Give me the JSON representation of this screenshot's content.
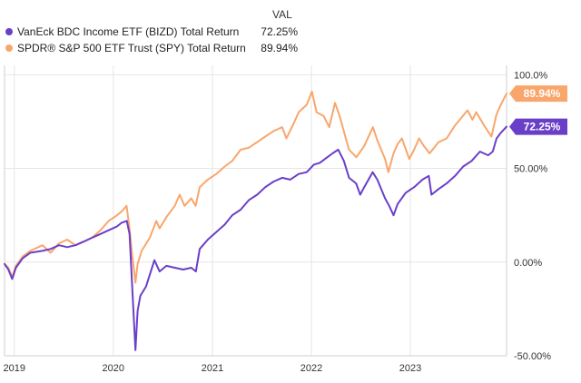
{
  "chart_data": {
    "type": "line",
    "legend_header": "VAL",
    "legend_placement": "top-left",
    "grid": true,
    "ylim": [
      -50,
      105
    ],
    "xlim": [
      "2018-11-26",
      "2023-12-22"
    ],
    "y_ticks": [
      {
        "value": 100,
        "label": "100.0%"
      },
      {
        "value": 50,
        "label": "50.00%"
      },
      {
        "value": 0,
        "label": "0.00%"
      },
      {
        "value": -50,
        "label": "-50.00%"
      }
    ],
    "x_ticks": [
      {
        "date": "2019-01-01",
        "label": "2019"
      },
      {
        "date": "2020-01-01",
        "label": "2020"
      },
      {
        "date": "2021-01-01",
        "label": "2021"
      },
      {
        "date": "2022-01-01",
        "label": "2022"
      },
      {
        "date": "2023-01-01",
        "label": "2023"
      }
    ],
    "series": [
      {
        "name": "VanEck BDC Income ETF (BIZD) Total Return",
        "value_label": "72.25%",
        "end_label": "72.25%",
        "color": "#6a3fc8",
        "points": [
          [
            "2018-11-26",
            -1
          ],
          [
            "2018-12-10",
            -4
          ],
          [
            "2018-12-24",
            -9
          ],
          [
            "2019-01-07",
            -3
          ],
          [
            "2019-02-01",
            2
          ],
          [
            "2019-03-01",
            5
          ],
          [
            "2019-04-15",
            6
          ],
          [
            "2019-05-15",
            7
          ],
          [
            "2019-06-15",
            9
          ],
          [
            "2019-07-15",
            8
          ],
          [
            "2019-08-15",
            9
          ],
          [
            "2019-09-15",
            11
          ],
          [
            "2019-10-15",
            13
          ],
          [
            "2019-11-15",
            15
          ],
          [
            "2019-12-15",
            17
          ],
          [
            "2020-01-15",
            19
          ],
          [
            "2020-02-01",
            21
          ],
          [
            "2020-02-20",
            22
          ],
          [
            "2020-03-01",
            15
          ],
          [
            "2020-03-10",
            -10
          ],
          [
            "2020-03-23",
            -47
          ],
          [
            "2020-03-31",
            -26
          ],
          [
            "2020-04-10",
            -18
          ],
          [
            "2020-05-01",
            -13
          ],
          [
            "2020-06-01",
            1
          ],
          [
            "2020-06-20",
            -5
          ],
          [
            "2020-07-15",
            -2
          ],
          [
            "2020-08-15",
            -3
          ],
          [
            "2020-09-15",
            -4
          ],
          [
            "2020-10-15",
            -3
          ],
          [
            "2020-11-01",
            -5
          ],
          [
            "2020-11-15",
            7
          ],
          [
            "2020-12-15",
            12
          ],
          [
            "2021-01-15",
            16
          ],
          [
            "2021-02-15",
            20
          ],
          [
            "2021-03-15",
            25
          ],
          [
            "2021-04-15",
            28
          ],
          [
            "2021-05-15",
            33
          ],
          [
            "2021-06-15",
            36
          ],
          [
            "2021-07-15",
            40
          ],
          [
            "2021-08-15",
            43
          ],
          [
            "2021-09-15",
            45
          ],
          [
            "2021-10-15",
            44
          ],
          [
            "2021-11-15",
            47
          ],
          [
            "2021-12-15",
            48
          ],
          [
            "2022-01-10",
            52
          ],
          [
            "2022-02-01",
            53
          ],
          [
            "2022-03-01",
            56
          ],
          [
            "2022-03-20",
            58
          ],
          [
            "2022-04-10",
            60
          ],
          [
            "2022-05-01",
            54
          ],
          [
            "2022-05-20",
            45
          ],
          [
            "2022-06-15",
            42
          ],
          [
            "2022-06-30",
            36
          ],
          [
            "2022-07-15",
            40
          ],
          [
            "2022-08-15",
            48
          ],
          [
            "2022-09-01",
            44
          ],
          [
            "2022-09-30",
            34
          ],
          [
            "2022-10-15",
            30
          ],
          [
            "2022-10-31",
            25
          ],
          [
            "2022-11-15",
            31
          ],
          [
            "2022-12-15",
            37
          ],
          [
            "2023-01-15",
            40
          ],
          [
            "2023-02-15",
            44
          ],
          [
            "2023-03-10",
            46
          ],
          [
            "2023-03-20",
            36
          ],
          [
            "2023-04-15",
            39
          ],
          [
            "2023-05-15",
            42
          ],
          [
            "2023-06-15",
            46
          ],
          [
            "2023-07-15",
            51
          ],
          [
            "2023-08-15",
            54
          ],
          [
            "2023-09-15",
            59
          ],
          [
            "2023-10-15",
            57
          ],
          [
            "2023-11-01",
            59
          ],
          [
            "2023-11-15",
            66
          ],
          [
            "2023-12-01",
            69
          ],
          [
            "2023-12-22",
            72.25
          ]
        ]
      },
      {
        "name": "SPDR® S&P 500 ETF Trust (SPY) Total Return",
        "value_label": "89.94%",
        "end_label": "89.94%",
        "color": "#f9a66c",
        "points": [
          [
            "2018-11-26",
            -1
          ],
          [
            "2018-12-10",
            -3
          ],
          [
            "2018-12-24",
            -8
          ],
          [
            "2019-01-07",
            -2
          ],
          [
            "2019-02-01",
            3
          ],
          [
            "2019-03-01",
            6
          ],
          [
            "2019-04-15",
            9
          ],
          [
            "2019-05-15",
            5
          ],
          [
            "2019-06-15",
            10
          ],
          [
            "2019-07-15",
            12
          ],
          [
            "2019-08-15",
            9
          ],
          [
            "2019-09-15",
            11
          ],
          [
            "2019-10-15",
            13
          ],
          [
            "2019-11-15",
            17
          ],
          [
            "2019-12-15",
            22
          ],
          [
            "2020-01-15",
            25
          ],
          [
            "2020-02-01",
            27
          ],
          [
            "2020-02-19",
            30
          ],
          [
            "2020-03-01",
            18
          ],
          [
            "2020-03-10",
            5
          ],
          [
            "2020-03-23",
            -11
          ],
          [
            "2020-03-31",
            -1
          ],
          [
            "2020-04-15",
            6
          ],
          [
            "2020-05-15",
            13
          ],
          [
            "2020-06-08",
            22
          ],
          [
            "2020-06-20",
            18
          ],
          [
            "2020-07-15",
            24
          ],
          [
            "2020-08-15",
            30
          ],
          [
            "2020-09-02",
            36
          ],
          [
            "2020-09-20",
            30
          ],
          [
            "2020-10-15",
            34
          ],
          [
            "2020-10-31",
            30
          ],
          [
            "2020-11-15",
            40
          ],
          [
            "2020-12-15",
            44
          ],
          [
            "2021-01-15",
            47
          ],
          [
            "2021-02-15",
            51
          ],
          [
            "2021-03-15",
            54
          ],
          [
            "2021-04-15",
            60
          ],
          [
            "2021-05-15",
            61
          ],
          [
            "2021-06-15",
            64
          ],
          [
            "2021-07-15",
            67
          ],
          [
            "2021-08-15",
            70
          ],
          [
            "2021-09-15",
            72
          ],
          [
            "2021-10-01",
            66
          ],
          [
            "2021-10-31",
            75
          ],
          [
            "2021-11-15",
            80
          ],
          [
            "2021-12-15",
            84
          ],
          [
            "2022-01-03",
            91
          ],
          [
            "2022-01-20",
            80
          ],
          [
            "2022-02-15",
            78
          ],
          [
            "2022-03-08",
            72
          ],
          [
            "2022-03-29",
            85
          ],
          [
            "2022-04-15",
            78
          ],
          [
            "2022-05-10",
            65
          ],
          [
            "2022-05-20",
            60
          ],
          [
            "2022-06-16",
            56
          ],
          [
            "2022-07-15",
            62
          ],
          [
            "2022-08-16",
            72
          ],
          [
            "2022-09-01",
            65
          ],
          [
            "2022-09-30",
            55
          ],
          [
            "2022-10-12",
            48
          ],
          [
            "2022-10-31",
            58
          ],
          [
            "2022-11-15",
            63
          ],
          [
            "2022-12-01",
            66
          ],
          [
            "2022-12-28",
            55
          ],
          [
            "2023-01-15",
            60
          ],
          [
            "2023-02-02",
            66
          ],
          [
            "2023-02-20",
            62
          ],
          [
            "2023-03-13",
            58
          ],
          [
            "2023-04-15",
            64
          ],
          [
            "2023-05-15",
            66
          ],
          [
            "2023-06-15",
            73
          ],
          [
            "2023-07-31",
            81
          ],
          [
            "2023-08-18",
            76
          ],
          [
            "2023-09-01",
            80
          ],
          [
            "2023-09-30",
            73
          ],
          [
            "2023-10-27",
            67
          ],
          [
            "2023-11-15",
            79
          ],
          [
            "2023-12-01",
            84
          ],
          [
            "2023-12-22",
            89.94
          ]
        ]
      }
    ]
  }
}
